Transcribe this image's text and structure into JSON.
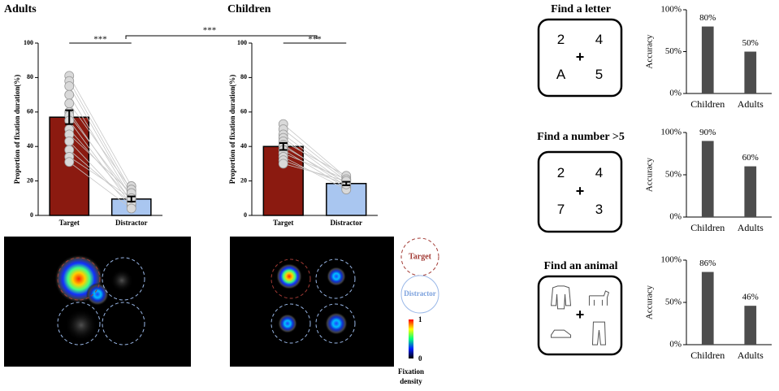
{
  "chart_data": [
    {
      "type": "bar",
      "title": "Adults",
      "y_label": "Proportion of fixation duration(%)",
      "categories": [
        "Target",
        "Distractor"
      ],
      "values": [
        57,
        9.5
      ],
      "errors": [
        4,
        1.5
      ],
      "colors": [
        "#8b1a10",
        "#a9c6f0"
      ],
      "ylim": [
        0,
        100
      ],
      "yticks": [
        0,
        20,
        40,
        60,
        80,
        100
      ],
      "points": [
        [
          81,
          17
        ],
        [
          78,
          14
        ],
        [
          75,
          12
        ],
        [
          70,
          10
        ],
        [
          65,
          15
        ],
        [
          60,
          8
        ],
        [
          58,
          11
        ],
        [
          55,
          6
        ],
        [
          50,
          9
        ],
        [
          47,
          13
        ],
        [
          43,
          5
        ],
        [
          38,
          7
        ],
        [
          34,
          10
        ],
        [
          31,
          4
        ]
      ],
      "annotations": [
        "***"
      ]
    },
    {
      "type": "bar",
      "title": "Children",
      "y_label": "Proportion of fixation duration(%)",
      "categories": [
        "Target",
        "Distractor"
      ],
      "values": [
        40,
        18.5
      ],
      "errors": [
        2,
        1
      ],
      "colors": [
        "#8b1a10",
        "#a9c6f0"
      ],
      "ylim": [
        0,
        100
      ],
      "yticks": [
        0,
        20,
        40,
        60,
        80,
        100
      ],
      "points": [
        [
          53,
          22
        ],
        [
          50,
          21
        ],
        [
          47,
          20
        ],
        [
          45,
          18
        ],
        [
          43,
          23
        ],
        [
          41,
          17
        ],
        [
          40,
          19
        ],
        [
          38,
          16
        ],
        [
          36,
          21
        ],
        [
          34,
          15
        ],
        [
          32,
          18
        ],
        [
          30,
          20
        ]
      ],
      "annotations": [
        "***"
      ]
    },
    {
      "type": "bar",
      "title": "Find a letter",
      "y_label": "Accuracy",
      "categories": [
        "Children",
        "Adults"
      ],
      "values": [
        80,
        50
      ],
      "value_labels": [
        "80%",
        "50%"
      ],
      "colors": [
        "#4d4d4d",
        "#4d4d4d"
      ],
      "ylim": [
        0,
        100
      ],
      "yticks": [
        {
          "value": 0,
          "label": "0%"
        },
        {
          "value": 50,
          "label": "50%"
        },
        {
          "value": 100,
          "label": "100%"
        }
      ],
      "stimulus": {
        "items": [
          "2",
          "4",
          "A",
          "5"
        ],
        "fixation": "+"
      }
    },
    {
      "type": "bar",
      "title": "Find a number >5",
      "y_label": "Accuracy",
      "categories": [
        "Children",
        "Adults"
      ],
      "values": [
        90,
        60
      ],
      "value_labels": [
        "90%",
        "60%"
      ],
      "colors": [
        "#4d4d4d",
        "#4d4d4d"
      ],
      "ylim": [
        0,
        100
      ],
      "yticks": [
        {
          "value": 0,
          "label": "0%"
        },
        {
          "value": 50,
          "label": "50%"
        },
        {
          "value": 100,
          "label": "100%"
        }
      ],
      "stimulus": {
        "items": [
          "2",
          "4",
          "7",
          "3"
        ],
        "fixation": "+"
      }
    },
    {
      "type": "bar",
      "title": "Find an animal",
      "y_label": "Accuracy",
      "categories": [
        "Children",
        "Adults"
      ],
      "values": [
        86,
        46
      ],
      "value_labels": [
        "86%",
        "46%"
      ],
      "colors": [
        "#4d4d4d",
        "#4d4d4d"
      ],
      "ylim": [
        0,
        100
      ],
      "yticks": [
        {
          "value": 0,
          "label": "0%"
        },
        {
          "value": 50,
          "label": "50%"
        },
        {
          "value": 100,
          "label": "100%"
        }
      ],
      "stimulus": {
        "fixation": "+"
      }
    }
  ],
  "cross_annotation": "***",
  "heatmap": {
    "legend": [
      "Target",
      "Distractor"
    ],
    "colorbar": {
      "ticks": [
        1,
        0
      ],
      "label": [
        "Fixation",
        "density"
      ]
    }
  }
}
